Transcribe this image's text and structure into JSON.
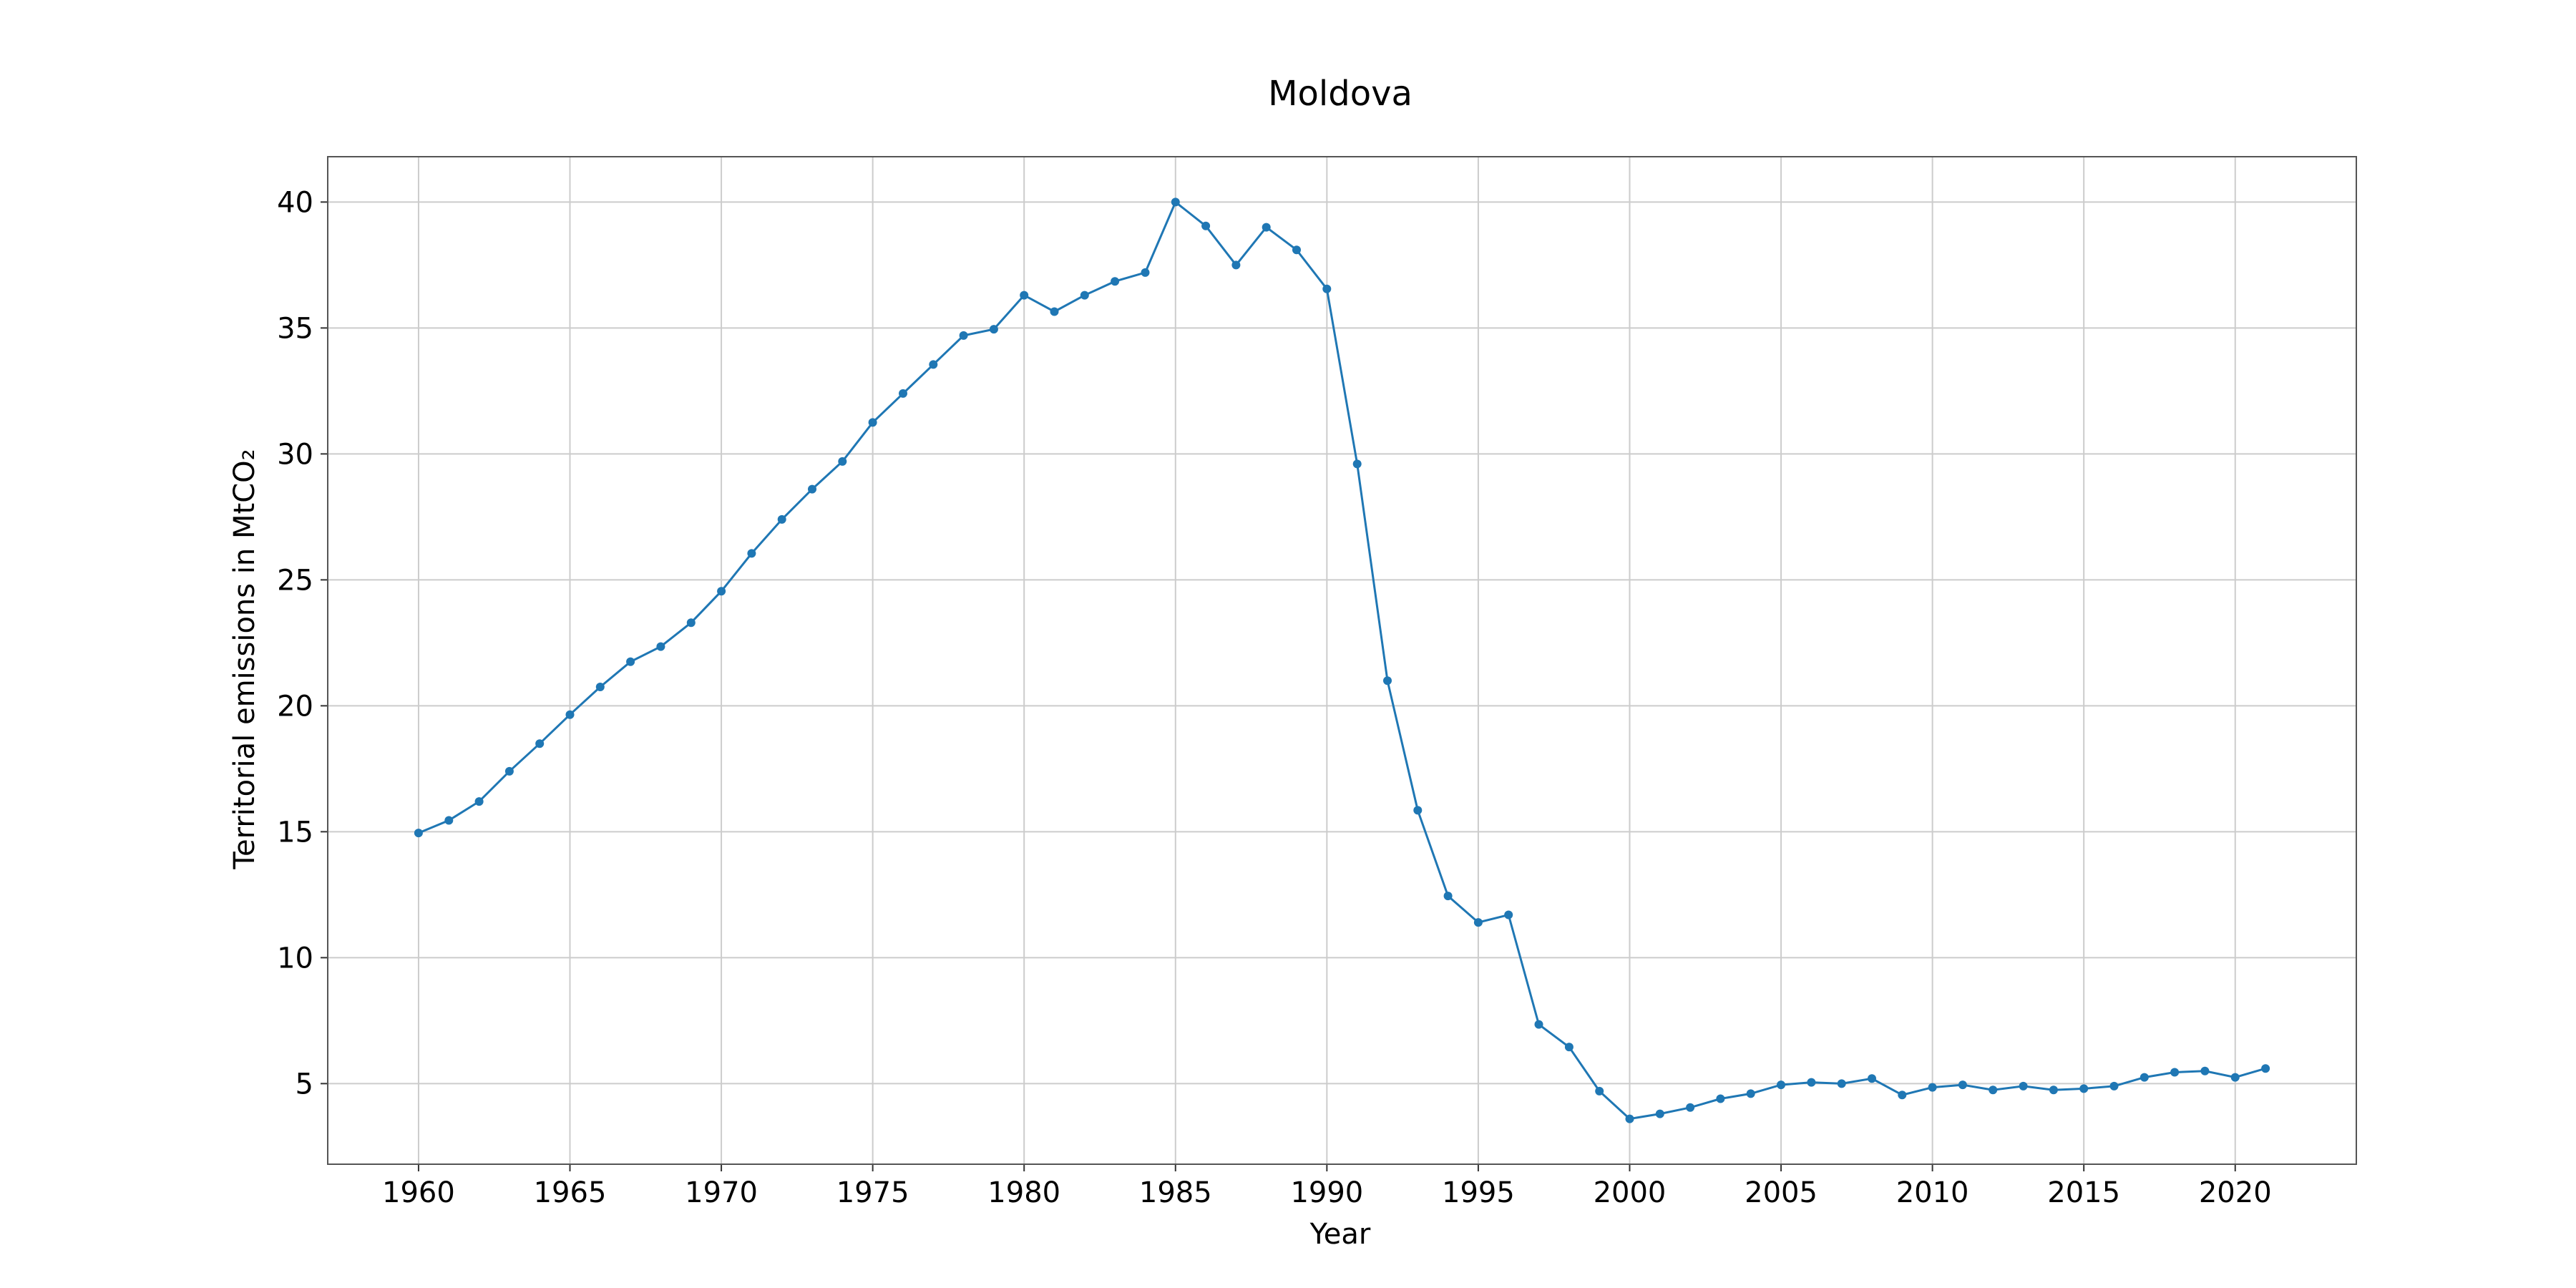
{
  "chart_data": {
    "type": "line",
    "title": "Moldova",
    "xlabel": "Year",
    "ylabel": "Territorial emissions in MtCO₂",
    "xlim": [
      1957,
      2024
    ],
    "ylim": [
      1.8,
      41.8
    ],
    "grid": true,
    "x_ticks": [
      "1960",
      "1965",
      "1970",
      "1975",
      "1980",
      "1985",
      "1990",
      "1995",
      "2000",
      "2005",
      "2010",
      "2015",
      "2020"
    ],
    "y_ticks": [
      "5",
      "10",
      "15",
      "20",
      "25",
      "30",
      "35",
      "40"
    ],
    "line_color": "#1f77b4",
    "marker": "circle",
    "x": [
      1960,
      1961,
      1962,
      1963,
      1964,
      1965,
      1966,
      1967,
      1968,
      1969,
      1970,
      1971,
      1972,
      1973,
      1974,
      1975,
      1976,
      1977,
      1978,
      1979,
      1980,
      1981,
      1982,
      1983,
      1984,
      1985,
      1986,
      1987,
      1988,
      1989,
      1990,
      1991,
      1992,
      1993,
      1994,
      1995,
      1996,
      1997,
      1998,
      1999,
      2000,
      2001,
      2002,
      2003,
      2004,
      2005,
      2006,
      2007,
      2008,
      2009,
      2010,
      2011,
      2012,
      2013,
      2014,
      2015,
      2016,
      2017,
      2018,
      2019,
      2020,
      2021
    ],
    "values": [
      14.95,
      15.45,
      16.2,
      17.4,
      18.5,
      19.65,
      20.75,
      21.75,
      22.35,
      23.3,
      24.55,
      26.05,
      27.4,
      28.6,
      29.7,
      31.25,
      32.4,
      33.55,
      34.7,
      34.95,
      36.3,
      35.65,
      36.3,
      36.85,
      37.2,
      40.0,
      39.05,
      37.5,
      39.0,
      38.1,
      36.55,
      29.6,
      21.0,
      15.85,
      12.45,
      11.4,
      11.7,
      7.35,
      6.45,
      4.7,
      3.6,
      3.8,
      4.05,
      4.4,
      4.6,
      4.95,
      5.05,
      5.0,
      5.2,
      4.55,
      4.85,
      4.95,
      4.75,
      4.9,
      4.75,
      4.8,
      4.9,
      5.25,
      5.45,
      5.5,
      5.25,
      5.6
    ]
  }
}
